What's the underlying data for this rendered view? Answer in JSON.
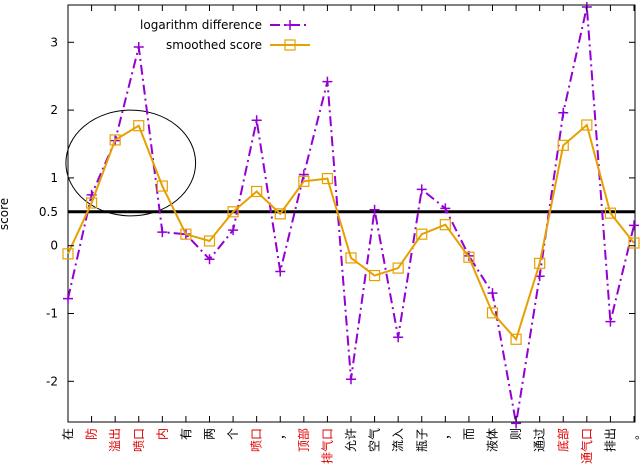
{
  "chart_data": {
    "type": "line",
    "title": "",
    "xlabel": "",
    "ylabel": "score",
    "ylim": [
      -2.6,
      3.55
    ],
    "yticks": [
      {
        "value": 3,
        "label": "3"
      },
      {
        "value": 2,
        "label": "2"
      },
      {
        "value": 1,
        "label": "1"
      },
      {
        "value": 0.5,
        "label": "0.5"
      },
      {
        "value": 0,
        "label": "0"
      },
      {
        "value": -1,
        "label": "-1"
      },
      {
        "value": -2,
        "label": "-2"
      }
    ],
    "threshold": 0.5,
    "grid": false,
    "legend_position": "top-left",
    "categories": [
      {
        "label": "在",
        "highlight": false
      },
      {
        "label": "防",
        "highlight": true
      },
      {
        "label": "溢出",
        "highlight": true
      },
      {
        "label": "喷口",
        "highlight": true
      },
      {
        "label": "内",
        "highlight": true
      },
      {
        "label": "有",
        "highlight": false
      },
      {
        "label": "两",
        "highlight": false
      },
      {
        "label": "个",
        "highlight": false
      },
      {
        "label": "喷口",
        "highlight": true
      },
      {
        "label": "，",
        "highlight": false
      },
      {
        "label": "顶部",
        "highlight": true
      },
      {
        "label": "排气口",
        "highlight": true
      },
      {
        "label": "允许",
        "highlight": false
      },
      {
        "label": "空气",
        "highlight": false
      },
      {
        "label": "流入",
        "highlight": false
      },
      {
        "label": "瓶子",
        "highlight": false
      },
      {
        "label": "，",
        "highlight": false
      },
      {
        "label": "而",
        "highlight": false
      },
      {
        "label": "液体",
        "highlight": false
      },
      {
        "label": "则",
        "highlight": false
      },
      {
        "label": "通过",
        "highlight": false
      },
      {
        "label": "底部",
        "highlight": true
      },
      {
        "label": "通气口",
        "highlight": true
      },
      {
        "label": "排出",
        "highlight": false
      },
      {
        "label": "。",
        "highlight": false
      }
    ],
    "series": [
      {
        "name": "logarithm difference",
        "color": "#9400d3",
        "style": "dash-dot",
        "marker": "plus",
        "values": [
          -0.78,
          0.75,
          1.55,
          2.93,
          0.2,
          0.17,
          -0.2,
          0.23,
          1.85,
          -0.38,
          1.05,
          2.42,
          -1.97,
          0.53,
          -1.35,
          0.83,
          0.55,
          -0.15,
          -0.7,
          -2.62,
          -0.45,
          1.96,
          3.52,
          -1.12,
          0.3
        ]
      },
      {
        "name": "smoothed score",
        "color": "#e6a000",
        "style": "solid",
        "marker": "square",
        "values": [
          -0.12,
          0.63,
          1.56,
          1.77,
          0.88,
          0.17,
          0.07,
          0.5,
          0.8,
          0.47,
          0.95,
          0.99,
          -0.18,
          -0.44,
          -0.33,
          0.17,
          0.31,
          -0.17,
          -0.99,
          -1.38,
          -0.26,
          1.48,
          1.78,
          0.48,
          0.04
        ]
      }
    ],
    "annotations": [
      {
        "type": "ellipse",
        "cx_index": 3,
        "cy_value": 1.22,
        "rx_categories": 2.75,
        "ry_value": 0.78
      }
    ],
    "label_color_highlight": "#dd0000",
    "label_color_normal": "#000000"
  }
}
